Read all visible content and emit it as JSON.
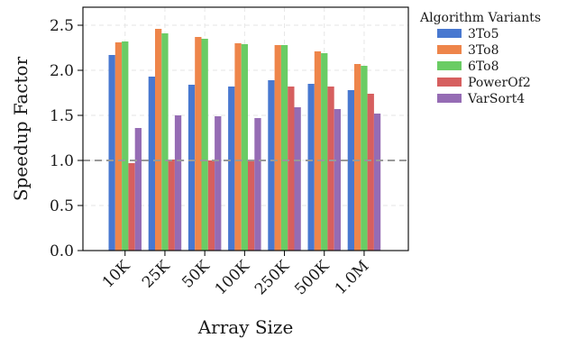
{
  "chart_data": {
    "type": "bar",
    "title": "",
    "xlabel": "Array Size",
    "ylabel": "Speedup Factor",
    "categories": [
      "10K",
      "25K",
      "50K",
      "100K",
      "250K",
      "500K",
      "1.0M"
    ],
    "series": [
      {
        "name": "3To5",
        "color": "#4878d0",
        "values": [
          2.17,
          1.93,
          1.84,
          1.82,
          1.89,
          1.85,
          1.78
        ]
      },
      {
        "name": "3To8",
        "color": "#ee854a",
        "values": [
          2.31,
          2.46,
          2.37,
          2.3,
          2.28,
          2.21,
          2.07
        ]
      },
      {
        "name": "6To8",
        "color": "#6acc64",
        "values": [
          2.32,
          2.41,
          2.35,
          2.29,
          2.28,
          2.19,
          2.05
        ]
      },
      {
        "name": "PowerOf2",
        "color": "#d65f5f",
        "values": [
          0.97,
          1.01,
          1.0,
          1.01,
          1.82,
          1.82,
          1.74
        ]
      },
      {
        "name": "VarSort4",
        "color": "#956cb4",
        "values": [
          1.36,
          1.5,
          1.49,
          1.47,
          1.59,
          1.57,
          1.52
        ]
      }
    ],
    "ylim": [
      0,
      2.7
    ],
    "yticks": [
      "0.0",
      "0.5",
      "1.0",
      "1.5",
      "2.0",
      "2.5"
    ],
    "reference_line": {
      "y": 1.0,
      "style": "dashed",
      "color": "#999999"
    },
    "grid": true,
    "legend": {
      "title": "Algorithm Variants",
      "placement": "outside-right"
    }
  }
}
